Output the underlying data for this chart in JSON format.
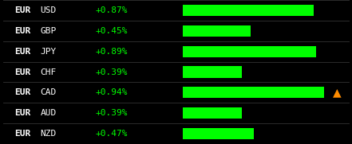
{
  "pairs": [
    "EURUSD",
    "EURGBP",
    "EURJPY",
    "EURCHF",
    "EURCAD",
    "EURAUD",
    "EURNZD"
  ],
  "labels_bold": [
    "EUR",
    "EUR",
    "EUR",
    "EUR",
    "EUR",
    "EUR",
    "EUR"
  ],
  "labels_rest": [
    "USD",
    "GBP",
    "JPY",
    "CHF",
    "CAD",
    "AUD",
    "NZD"
  ],
  "values": [
    0.87,
    0.45,
    0.89,
    0.39,
    0.94,
    0.39,
    0.47
  ],
  "value_labels": [
    "+0.87%",
    "+0.45%",
    "+0.89%",
    "+0.39%",
    "+0.94%",
    "+0.39%",
    "+0.47%"
  ],
  "max_value": 0.94,
  "bar_color": "#00ff00",
  "bg_color": "#000000",
  "text_color_bold": "#ffffff",
  "text_color_pct": "#00ff00",
  "arrow_row": 4,
  "arrow_color": "#ff8c00",
  "divider_color": "#333333"
}
